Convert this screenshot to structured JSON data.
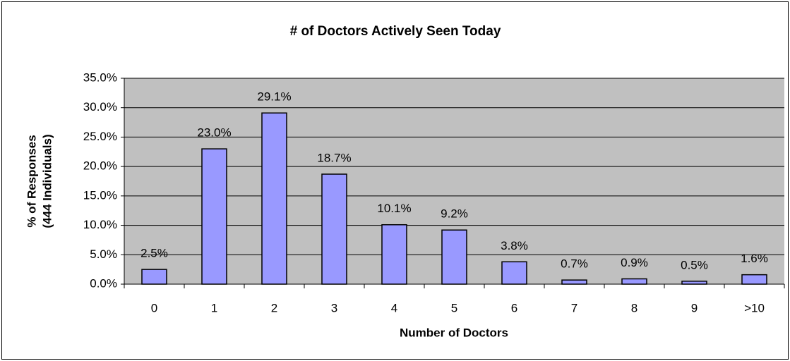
{
  "chart_data": {
    "type": "bar",
    "title": "# of Doctors Actively Seen Today",
    "xlabel": "Number of Doctors",
    "ylabel": [
      "% of Responses",
      "(444 Individuals)"
    ],
    "categories": [
      "0",
      "1",
      "2",
      "3",
      "4",
      "5",
      "6",
      "7",
      "8",
      "9",
      ">10"
    ],
    "values": [
      2.5,
      23.0,
      29.1,
      18.7,
      10.1,
      9.2,
      3.8,
      0.7,
      0.9,
      0.5,
      1.6
    ],
    "value_labels": [
      "2.5%",
      "23.0%",
      "29.1%",
      "18.7%",
      "10.1%",
      "9.2%",
      "3.8%",
      "0.7%",
      "0.9%",
      "0.5%",
      "1.6%"
    ],
    "color": "#9999ff",
    "ylim": [
      0,
      35
    ],
    "yticks": [
      {
        "value": 0,
        "label": "0.0%"
      },
      {
        "value": 5,
        "label": "5.0%"
      },
      {
        "value": 10,
        "label": "10.0%"
      },
      {
        "value": 15,
        "label": "15.0%"
      },
      {
        "value": 20,
        "label": "20.0%"
      },
      {
        "value": 25,
        "label": "25.0%"
      },
      {
        "value": 30,
        "label": "30.0%"
      },
      {
        "value": 35,
        "label": "35.0%"
      }
    ],
    "grid": true
  }
}
